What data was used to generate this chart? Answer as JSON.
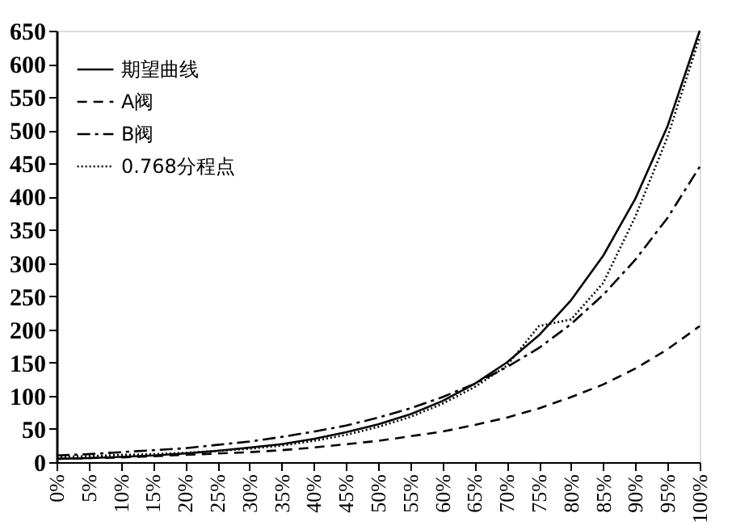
{
  "chart_data": {
    "type": "line",
    "categories": [
      "0%",
      "5%",
      "10%",
      "15%",
      "20%",
      "25%",
      "30%",
      "35%",
      "40%",
      "45%",
      "50%",
      "55%",
      "60%",
      "65%",
      "70%",
      "75%",
      "80%",
      "85%",
      "90%",
      "95%",
      "100%"
    ],
    "series": [
      {
        "name": "期望曲线",
        "color": "#000000",
        "line_style": "solid",
        "values": [
          5,
          6,
          8,
          10,
          13,
          17,
          22,
          27,
          35,
          45,
          57,
          72,
          92,
          118,
          150,
          191,
          244,
          311,
          397,
          506,
          650
        ]
      },
      {
        "name": "A阀",
        "color": "#000000",
        "line_style": "dashed",
        "values": [
          5,
          6,
          7,
          9,
          11,
          13,
          15,
          18,
          22,
          27,
          32,
          39,
          46,
          56,
          67,
          81,
          98,
          117,
          141,
          170,
          205
        ]
      },
      {
        "name": "B阀",
        "color": "#000000",
        "line_style": "dashdot",
        "values": [
          10,
          12,
          15,
          18,
          21,
          26,
          31,
          38,
          46,
          55,
          67,
          81,
          98,
          118,
          143,
          172,
          208,
          252,
          305,
          368,
          445
        ]
      },
      {
        "name": "0.768分程点",
        "color": "#000000",
        "line_style": "dotted",
        "values": [
          8,
          9,
          11,
          12,
          14,
          17,
          20,
          25,
          32,
          41,
          53,
          68,
          88,
          113,
          145,
          205,
          215,
          270,
          370,
          490,
          640
        ]
      }
    ],
    "ylim": [
      0,
      650
    ],
    "yticks": [
      0,
      50,
      100,
      150,
      200,
      250,
      300,
      350,
      400,
      450,
      500,
      550,
      600,
      650
    ],
    "grid": false,
    "legend": "top left"
  }
}
